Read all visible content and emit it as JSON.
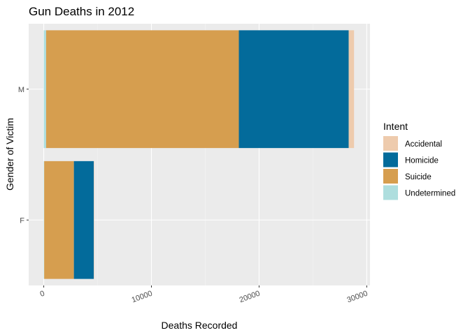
{
  "chart_data": {
    "type": "bar",
    "orientation": "horizontal",
    "stacked": true,
    "title": "Gun Deaths in 2012",
    "xlabel": "Deaths Recorded",
    "ylabel": "Gender of Victim",
    "categories": [
      "F",
      "M"
    ],
    "xlim": [
      -1400,
      30300
    ],
    "x_ticks": [
      0,
      10000,
      20000,
      30000
    ],
    "x_tick_labels": [
      "0",
      "10000",
      "20000",
      "30000"
    ],
    "grid": true,
    "legend": {
      "title": "Intent",
      "position": "right"
    },
    "stack_order": [
      "Undetermined",
      "Suicide",
      "Homicide",
      "Accidental"
    ],
    "series": [
      {
        "name": "Accidental",
        "color": "#EECBAD",
        "values": [
          40,
          500
        ]
      },
      {
        "name": "Homicide",
        "color": "#036B9B",
        "values": [
          1850,
          10200
        ]
      },
      {
        "name": "Suicide",
        "color": "#D69E4F",
        "values": [
          2760,
          17900
        ]
      },
      {
        "name": "Undetermined",
        "color": "#AEDEDE",
        "values": [
          40,
          220
        ]
      }
    ],
    "legend_order": [
      "Accidental",
      "Homicide",
      "Suicide",
      "Undetermined"
    ]
  }
}
